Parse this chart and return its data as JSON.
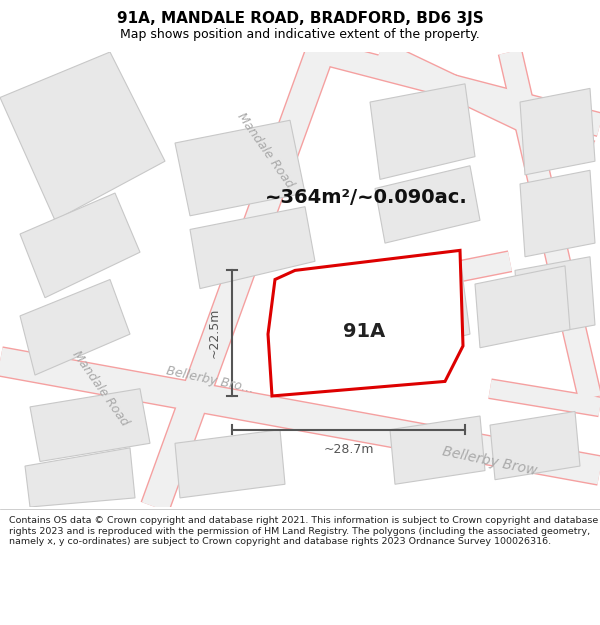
{
  "title": "91A, MANDALE ROAD, BRADFORD, BD6 3JS",
  "subtitle": "Map shows position and indicative extent of the property.",
  "footer": "Contains OS data © Crown copyright and database right 2021. This information is subject to Crown copyright and database rights 2023 and is reproduced with the permission of HM Land Registry. The polygons (including the associated geometry, namely x, y co-ordinates) are subject to Crown copyright and database rights 2023 Ordnance Survey 100026316.",
  "area_text": "~364m²/~0.090ac.",
  "property_label": "91A",
  "dim1_label": "~22.5m",
  "dim2_label": "~28.7m",
  "map_bg": "#ffffff",
  "road_line_color": "#f5a0a0",
  "building_fill": "#e8e8e8",
  "building_outline": "#c8c8c8",
  "highlight_fill": "#ffffff",
  "highlight_outline": "#dd0000",
  "street_label_color": "#aaaaaa",
  "dim_color": "#555555",
  "title_color": "#000000",
  "footer_color": "#222222",
  "area_color": "#111111",
  "title_fs": 11,
  "subtitle_fs": 9,
  "area_fs": 14,
  "label_fs": 14,
  "dim_fs": 9,
  "footer_fs": 6.8,
  "road_label_fs": 9
}
